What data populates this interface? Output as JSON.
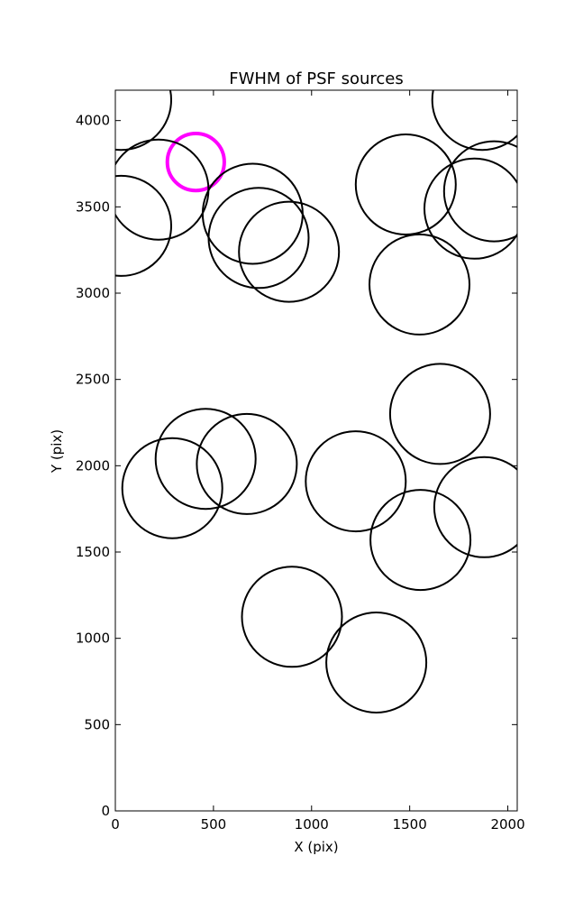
{
  "chart_data": {
    "type": "scatter",
    "title": "FWHM of PSF sources",
    "xlabel": "X (pix)",
    "ylabel": "Y (pix)",
    "xlim": [
      0,
      2048
    ],
    "ylim": [
      0,
      4176
    ],
    "xticks": [
      0,
      500,
      1000,
      1500,
      2000
    ],
    "yticks": [
      0,
      500,
      1000,
      1500,
      2000,
      2500,
      3000,
      3500,
      4000
    ],
    "grid": false,
    "marker": "circle",
    "sources": [
      {
        "x": 30,
        "y": 4120,
        "r": 255,
        "color": "#000000"
      },
      {
        "x": 1870,
        "y": 4120,
        "r": 255,
        "color": "#000000"
      },
      {
        "x": 410,
        "y": 3760,
        "r": 145,
        "color": "#ff00ff"
      },
      {
        "x": 220,
        "y": 3600,
        "r": 255,
        "color": "#000000"
      },
      {
        "x": 30,
        "y": 3390,
        "r": 255,
        "color": "#000000"
      },
      {
        "x": 700,
        "y": 3460,
        "r": 255,
        "color": "#000000"
      },
      {
        "x": 730,
        "y": 3320,
        "r": 255,
        "color": "#000000"
      },
      {
        "x": 885,
        "y": 3240,
        "r": 255,
        "color": "#000000"
      },
      {
        "x": 1480,
        "y": 3630,
        "r": 255,
        "color": "#000000"
      },
      {
        "x": 1830,
        "y": 3490,
        "r": 255,
        "color": "#000000"
      },
      {
        "x": 1930,
        "y": 3590,
        "r": 255,
        "color": "#000000"
      },
      {
        "x": 1550,
        "y": 3050,
        "r": 255,
        "color": "#000000"
      },
      {
        "x": 1655,
        "y": 2300,
        "r": 255,
        "color": "#000000"
      },
      {
        "x": 460,
        "y": 2040,
        "r": 255,
        "color": "#000000"
      },
      {
        "x": 670,
        "y": 2010,
        "r": 255,
        "color": "#000000"
      },
      {
        "x": 290,
        "y": 1870,
        "r": 255,
        "color": "#000000"
      },
      {
        "x": 1225,
        "y": 1910,
        "r": 255,
        "color": "#000000"
      },
      {
        "x": 1880,
        "y": 1760,
        "r": 255,
        "color": "#000000"
      },
      {
        "x": 1555,
        "y": 1570,
        "r": 255,
        "color": "#000000"
      },
      {
        "x": 900,
        "y": 1125,
        "r": 255,
        "color": "#000000"
      },
      {
        "x": 1330,
        "y": 860,
        "r": 255,
        "color": "#000000"
      }
    ]
  }
}
